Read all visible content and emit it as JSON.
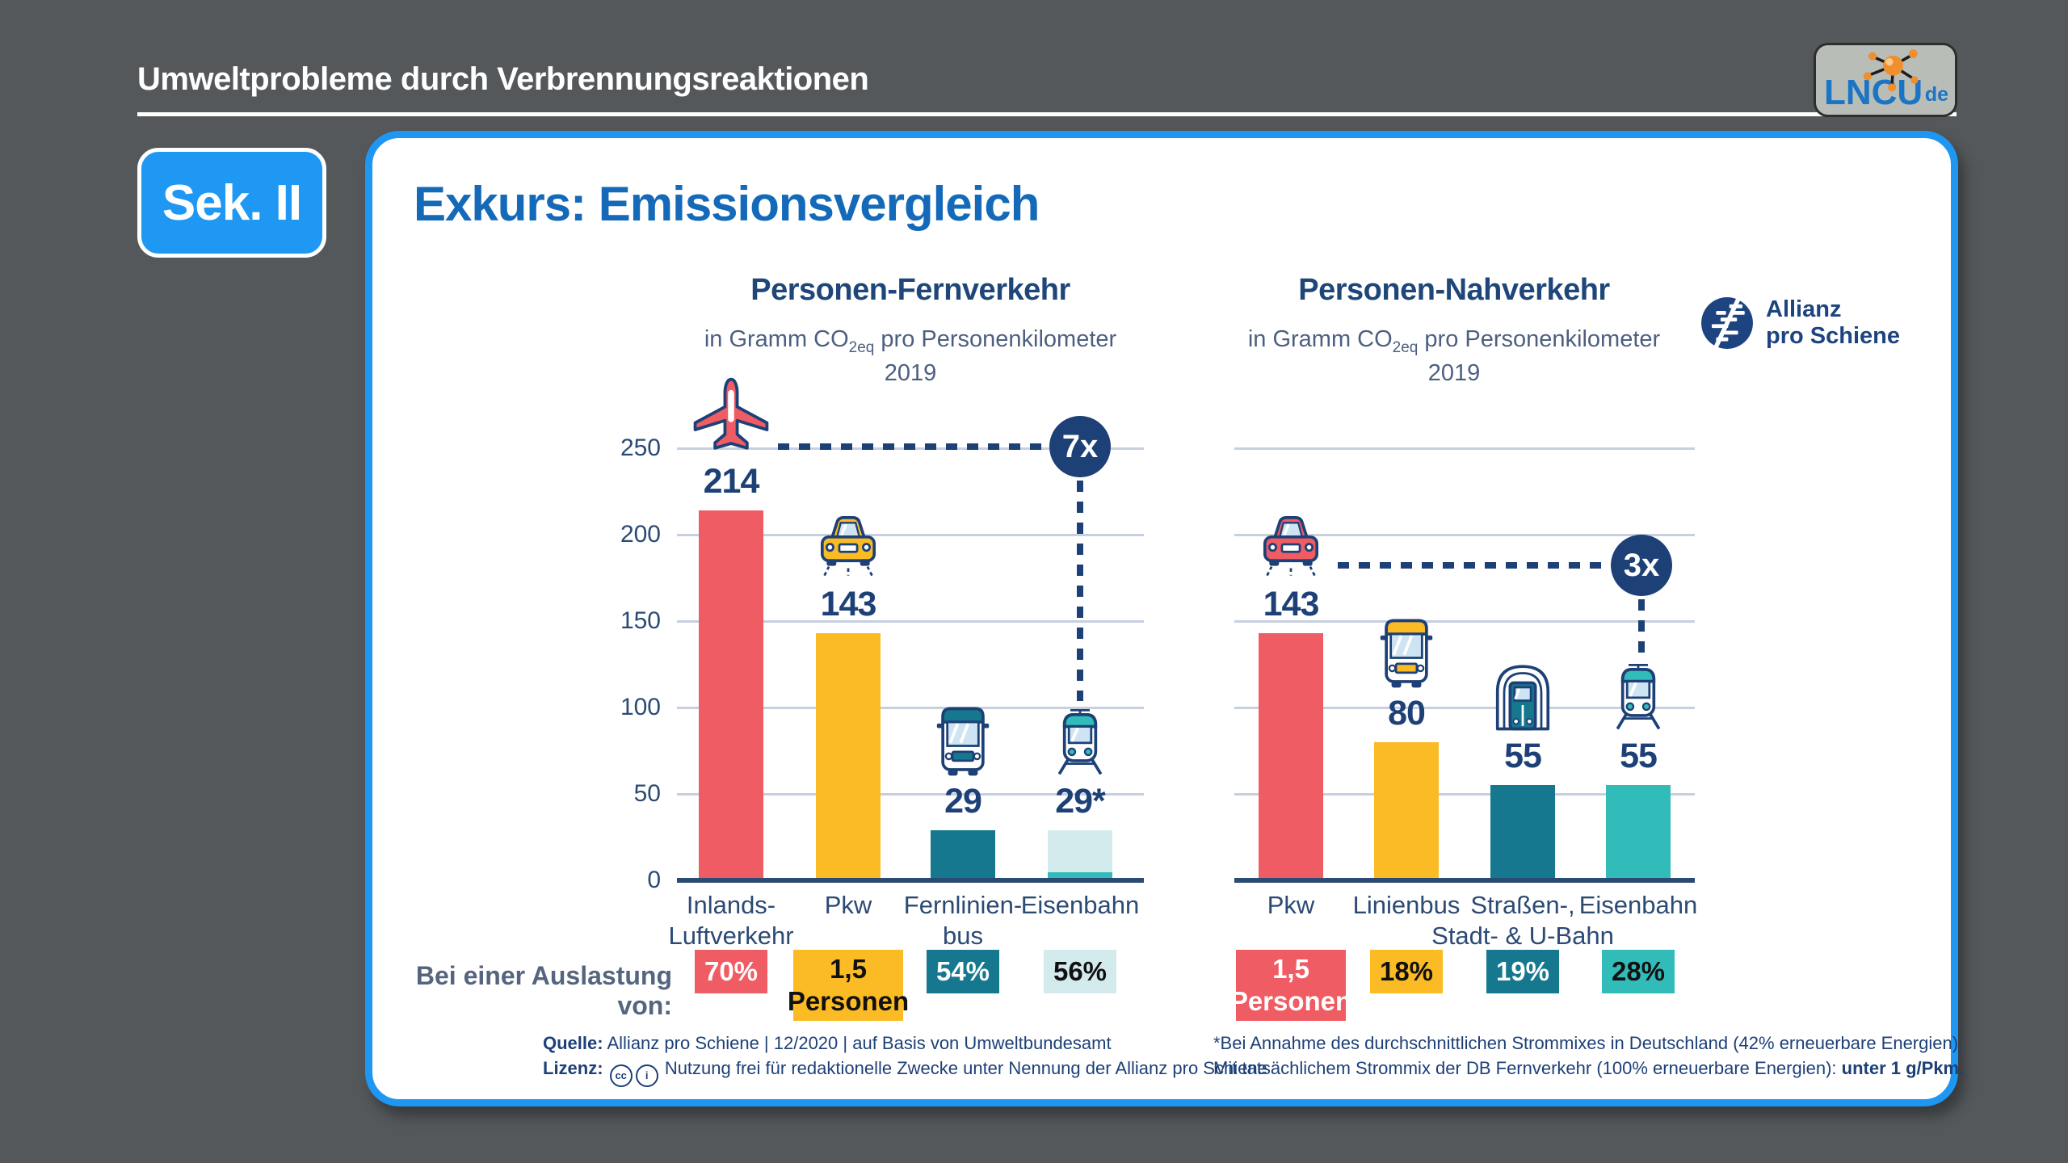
{
  "page": {
    "header_title": "Umweltprobleme durch Verbrennungsreaktionen",
    "level_badge": "Sek. II",
    "slide_title": "Exkurs: Emissionsvergleich"
  },
  "lncu_logo": {
    "text": "LNCU",
    "suffix": "de"
  },
  "brand": {
    "line1": "Allianz",
    "line2": "pro Schiene"
  },
  "occupancy_prefix": "Bei einer Auslastung von:",
  "source": {
    "label": "Quelle:",
    "text": "Allianz pro Schiene | 12/2020 | auf Basis von Umweltbundesamt"
  },
  "license": {
    "label": "Lizenz:",
    "icons": [
      "cc-icon",
      "by-icon"
    ],
    "text": "Nutzung frei für redaktionelle Zwecke unter Nennung der Allianz pro Schiene"
  },
  "footnote": {
    "line1": "*Bei Annahme des durchschnittlichen Strommixes in Deutschland (42% erneuerbare Energien).",
    "line2": "Mit tatsächlichem Strommix der DB Fernverkehr (100% erneuerbare Energien): ",
    "line2_bold": "unter 1 g/Pkm."
  },
  "colors": {
    "red": "#f05c63",
    "yellow": "#fbbb25",
    "dark_teal": "#15788e",
    "pale_teal": "#d4ebee",
    "teal": "#31bcb9",
    "navy": "#1d4077",
    "accent_blue": "#1e97f2"
  },
  "chart_data": [
    {
      "type": "bar",
      "title": "Personen-Fernverkehr",
      "subtitle_prefix": "in Gramm CO",
      "subtitle_sub": "2eq",
      "subtitle_suffix": " pro Personenkilometer",
      "year": "2019",
      "ylim": [
        0,
        250
      ],
      "yticks": [
        0,
        50,
        100,
        150,
        200,
        250
      ],
      "show_ytick_labels": true,
      "grid": true,
      "categories": [
        "Inlands-Luftverkehr",
        "Pkw",
        "Fernlinienbus",
        "Eisenbahn"
      ],
      "category_label_lines": [
        [
          "Inlands-",
          "Luftverkehr"
        ],
        [
          "Pkw"
        ],
        [
          "Fernlinien-",
          "bus"
        ],
        [
          "Eisenbahn"
        ]
      ],
      "values": [
        214,
        143,
        29,
        29
      ],
      "value_labels": [
        "214",
        "143",
        "29",
        "29*"
      ],
      "bar_color_keys": [
        "red",
        "yellow",
        "dark_teal",
        "pale_teal"
      ],
      "bar_base_strip_color_keys": [
        null,
        null,
        null,
        "teal"
      ],
      "icons": [
        "airplane-icon",
        "car-icon",
        "bus-icon",
        "train-icon"
      ],
      "icon_accent_keys": [
        "red",
        "yellow",
        "dark_teal",
        "teal"
      ],
      "multiplier": {
        "label": "7x",
        "from": 0,
        "to": 3
      },
      "occupancy": [
        {
          "lines": [
            "70%"
          ],
          "bg_key": "red",
          "fg": "#ffffff"
        },
        {
          "lines": [
            "1,5",
            "Personen"
          ],
          "bg_key": "yellow",
          "fg": "#111111"
        },
        {
          "lines": [
            "54%"
          ],
          "bg_key": "dark_teal",
          "fg": "#ffffff"
        },
        {
          "lines": [
            "56%"
          ],
          "bg_key": "pale_teal",
          "fg": "#111111"
        }
      ]
    },
    {
      "type": "bar",
      "title": "Personen-Nahverkehr",
      "subtitle_prefix": "in Gramm CO",
      "subtitle_sub": "2eq",
      "subtitle_suffix": " pro Personenkilometer",
      "year": "2019",
      "ylim": [
        0,
        250
      ],
      "yticks": [
        0,
        50,
        100,
        150,
        200,
        250
      ],
      "show_ytick_labels": false,
      "grid": true,
      "categories": [
        "Pkw",
        "Linienbus",
        "Straßen-, Stadt- & U-Bahn",
        "Eisenbahn"
      ],
      "category_label_lines": [
        [
          "Pkw"
        ],
        [
          "Linienbus"
        ],
        [
          "Straßen-,",
          "Stadt- & U-Bahn"
        ],
        [
          "Eisenbahn"
        ]
      ],
      "values": [
        143,
        80,
        55,
        55
      ],
      "value_labels": [
        "143",
        "80",
        "55",
        "55"
      ],
      "bar_color_keys": [
        "red",
        "yellow",
        "dark_teal",
        "teal"
      ],
      "bar_base_strip_color_keys": [
        null,
        null,
        null,
        null
      ],
      "icons": [
        "car-icon",
        "bus-icon",
        "metro-icon",
        "train-icon"
      ],
      "icon_accent_keys": [
        "red",
        "yellow",
        "dark_teal",
        "teal"
      ],
      "multiplier": {
        "label": "3x",
        "from": 0,
        "to": 3
      },
      "occupancy": [
        {
          "lines": [
            "1,5",
            "Personen"
          ],
          "bg_key": "red",
          "fg": "#ffffff"
        },
        {
          "lines": [
            "18%"
          ],
          "bg_key": "yellow",
          "fg": "#111111"
        },
        {
          "lines": [
            "19%"
          ],
          "bg_key": "dark_teal",
          "fg": "#ffffff"
        },
        {
          "lines": [
            "28%"
          ],
          "bg_key": "teal",
          "fg": "#111111"
        }
      ]
    }
  ]
}
